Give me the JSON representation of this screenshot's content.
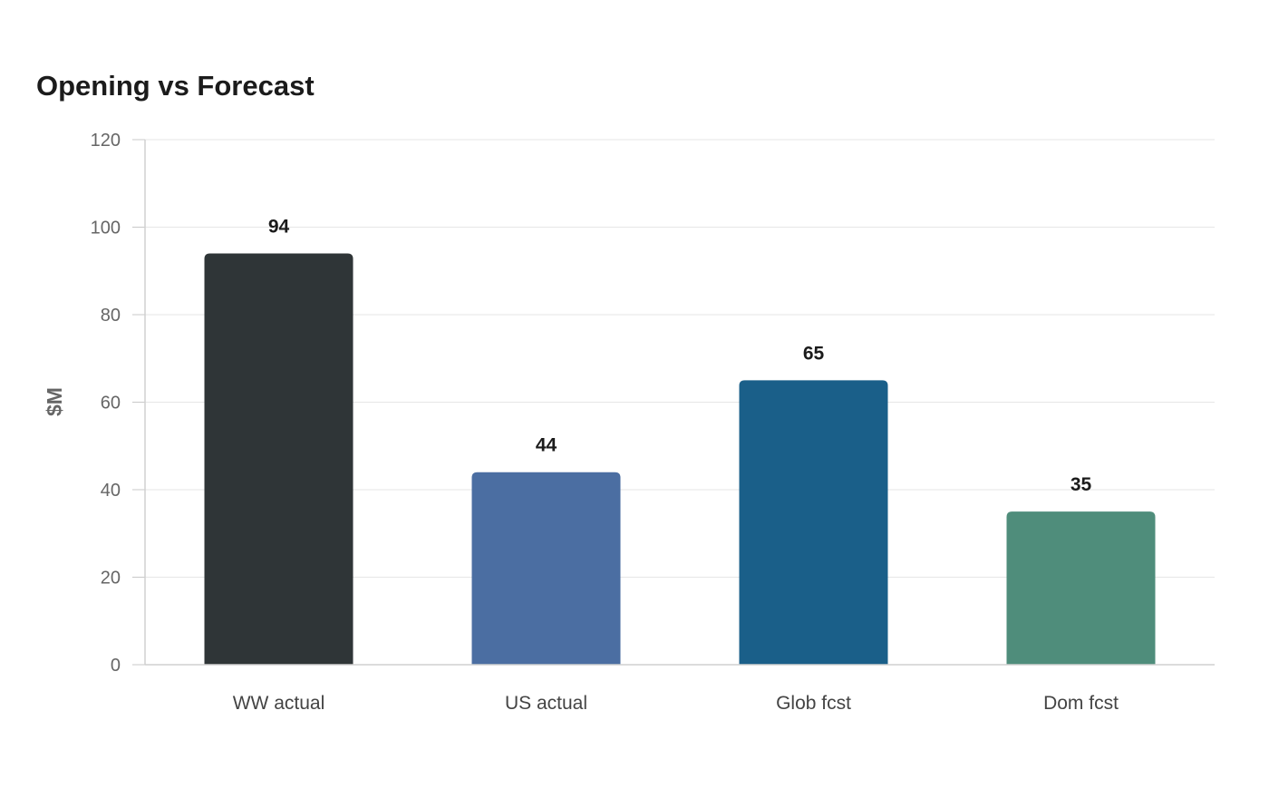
{
  "chart_data": {
    "type": "bar",
    "title": "Opening vs Forecast",
    "xlabel": "",
    "ylabel": "$M",
    "categories": [
      "WW actual",
      "US actual",
      "Glob fcst",
      "Dom fcst"
    ],
    "values": [
      94,
      44,
      65,
      35
    ],
    "data_labels": [
      "94",
      "44",
      "65",
      "35"
    ],
    "colors": [
      "#2f3537",
      "#4b6ea2",
      "#1a5f89",
      "#4f8d7b"
    ],
    "ylim": [
      0,
      120
    ],
    "yticks": [
      0,
      20,
      40,
      60,
      80,
      100,
      120
    ],
    "grid": true,
    "legend": "none"
  }
}
